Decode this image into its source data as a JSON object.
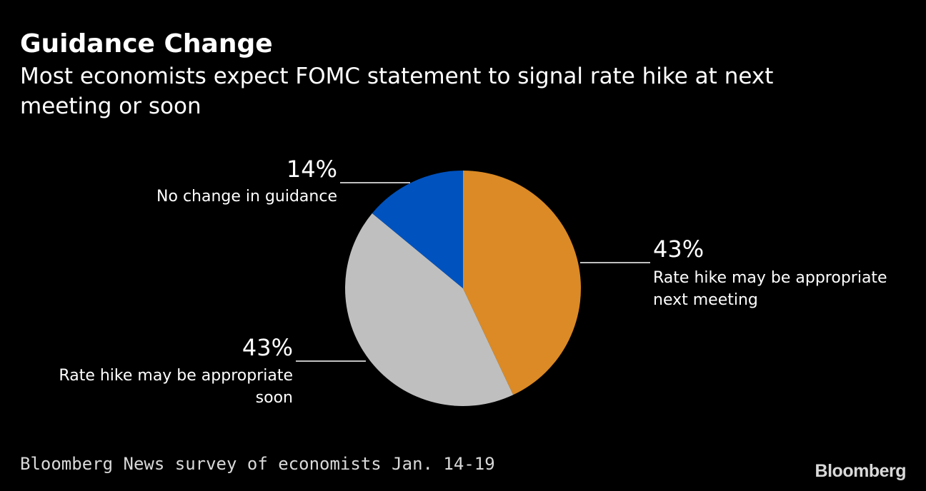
{
  "header": {
    "title": "Guidance Change",
    "subtitle": "Most economists expect FOMC statement to signal rate hike at next meeting or soon"
  },
  "footer": {
    "source": "Bloomberg News survey of economists Jan. 14-19",
    "logo": "Bloomberg"
  },
  "chart_data": {
    "type": "pie",
    "slices": [
      {
        "name": "Rate hike may be appropriate next meeting",
        "label_lines": [
          "Rate hike may be appropriate",
          "next meeting"
        ],
        "value": 43,
        "display": "43%",
        "color": "#db8a25"
      },
      {
        "name": "Rate hike may be appropriate soon",
        "label_lines": [
          "Rate hike may be appropriate",
          "soon"
        ],
        "value": 43,
        "display": "43%",
        "color": "#bfbfbf"
      },
      {
        "name": "No change in guidance",
        "label_lines": [
          "No change in guidance"
        ],
        "value": 14,
        "display": "14%",
        "color": "#0052be"
      }
    ]
  }
}
